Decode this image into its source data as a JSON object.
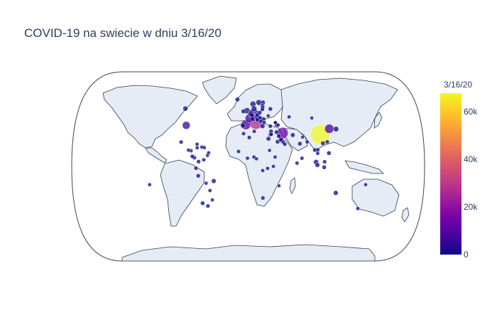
{
  "chart_data": {
    "type": "scatter",
    "subtype": "scatter-geo-bubble",
    "title": "COVID-19 na swiecie w dniu 3/16/20",
    "projection": "natural earth",
    "colorbar": {
      "title": "3/16/20",
      "range": [
        0,
        67800
      ],
      "ticks": [
        {
          "value": 0,
          "label": "0"
        },
        {
          "value": 20000,
          "label": "20k"
        },
        {
          "value": 40000,
          "label": "40k"
        },
        {
          "value": 60000,
          "label": "60k"
        }
      ],
      "colorscale": [
        "#0d0887",
        "#46039f",
        "#7201a8",
        "#9c179e",
        "#bd3786",
        "#d8576b",
        "#ed7953",
        "#fb9f3a",
        "#fdca26",
        "#f0f921"
      ]
    },
    "points": [
      {
        "lon": 112.3,
        "lat": 30.9,
        "value": 67800
      },
      {
        "lon": 12.5,
        "lat": 42.8,
        "value": 27980
      },
      {
        "lon": 53.7,
        "lat": 32.4,
        "value": 14991
      },
      {
        "lon": -3.7,
        "lat": 40.4,
        "value": 9942
      },
      {
        "lon": 127.8,
        "lat": 36.5,
        "value": 8236
      },
      {
        "lon": 10.4,
        "lat": 51.2,
        "value": 7272
      },
      {
        "lon": 2.2,
        "lat": 46.6,
        "value": 6650
      },
      {
        "lon": 8.2,
        "lat": 46.8,
        "value": 2200
      },
      {
        "lon": -98.5,
        "lat": 39.8,
        "value": 4632
      },
      {
        "lon": -2.0,
        "lat": 54.0,
        "value": 1543
      },
      {
        "lon": 5.3,
        "lat": 52.1,
        "value": 1414
      },
      {
        "lon": 8.5,
        "lat": 60.5,
        "value": 1256
      },
      {
        "lon": 14.6,
        "lat": 47.6,
        "value": 1018
      },
      {
        "lon": 4.5,
        "lat": 50.5,
        "value": 1058
      },
      {
        "lon": 18.6,
        "lat": 62.0,
        "value": 1040
      },
      {
        "lon": 10.0,
        "lat": 56.0,
        "value": 898
      },
      {
        "lon": 138.3,
        "lat": 36.2,
        "value": 825
      },
      {
        "lon": 103.8,
        "lat": 1.3,
        "value": 243
      },
      {
        "lon": 101.9,
        "lat": 4.2,
        "value": 553
      },
      {
        "lon": 50.6,
        "lat": 26.0,
        "value": 214
      },
      {
        "lon": 33.0,
        "lat": 49.0,
        "value": 7
      },
      {
        "lon": -106.3,
        "lat": 56.1,
        "value": 441
      },
      {
        "lon": 134.5,
        "lat": -25.7,
        "value": 377
      },
      {
        "lon": -51.9,
        "lat": -14.2,
        "value": 234
      },
      {
        "lon": 35.0,
        "lat": 31.0,
        "value": 298
      },
      {
        "lon": 22.9,
        "lat": 39.1,
        "value": 331
      },
      {
        "lon": 25.7,
        "lat": 61.9,
        "value": 272
      },
      {
        "lon": -8.2,
        "lat": 39.6,
        "value": 331
      },
      {
        "lon": 15.5,
        "lat": 49.8,
        "value": 298
      },
      {
        "lon": 19.1,
        "lat": 52.1,
        "value": 150
      },
      {
        "lon": 24.9,
        "lat": 45.9,
        "value": 158
      },
      {
        "lon": -8.0,
        "lat": 53.4,
        "value": 169
      },
      {
        "lon": 31.2,
        "lat": 26.8,
        "value": 166
      },
      {
        "lon": 45.1,
        "lat": 23.9,
        "value": 118
      },
      {
        "lon": 100.9,
        "lat": 15.9,
        "value": 147
      },
      {
        "lon": 113.9,
        "lat": -0.8,
        "value": 134
      },
      {
        "lon": 121.8,
        "lat": 12.9,
        "value": 142
      },
      {
        "lon": 78.9,
        "lat": 22.0,
        "value": 114
      },
      {
        "lon": 105.3,
        "lat": 16.0,
        "value": 61
      },
      {
        "lon": 69.3,
        "lat": 30.4,
        "value": 187
      },
      {
        "lon": 35.9,
        "lat": 33.9,
        "value": 99
      },
      {
        "lon": 47.5,
        "lat": 29.3,
        "value": 123
      },
      {
        "lon": 44.4,
        "lat": 33.2,
        "value": 124
      },
      {
        "lon": 51.2,
        "lat": 25.3,
        "value": 439
      },
      {
        "lon": 54.0,
        "lat": 23.4,
        "value": 98
      },
      {
        "lon": 37.6,
        "lat": 55.7,
        "value": 90
      },
      {
        "lon": 19.5,
        "lat": 47.2,
        "value": 39
      },
      {
        "lon": 14.9,
        "lat": 46.1,
        "value": 253
      },
      {
        "lon": 15.2,
        "lat": 45.1,
        "value": 56
      },
      {
        "lon": 20.5,
        "lat": 44.0,
        "value": 55
      },
      {
        "lon": 25.5,
        "lat": 42.7,
        "value": 51
      },
      {
        "lon": 24.6,
        "lat": 58.6,
        "value": 205
      },
      {
        "lon": 23.9,
        "lat": 55.2,
        "value": 14
      },
      {
        "lon": 24.6,
        "lat": 56.9,
        "value": 60
      },
      {
        "lon": -19.0,
        "lat": 64.9,
        "value": 180
      },
      {
        "lon": 6.1,
        "lat": 49.8,
        "value": 81
      },
      {
        "lon": 35.2,
        "lat": 39.0,
        "value": 47
      },
      {
        "lon": 43.4,
        "lat": 42.3,
        "value": 33
      },
      {
        "lon": 45.0,
        "lat": 40.1,
        "value": 52
      },
      {
        "lon": 47.6,
        "lat": 40.1,
        "value": 28
      },
      {
        "lon": 66.9,
        "lat": 48.0,
        "value": 10
      },
      {
        "lon": 35.9,
        "lat": 31.2,
        "value": 8
      },
      {
        "lon": 9.5,
        "lat": 34.0,
        "value": 20
      },
      {
        "lon": 1.7,
        "lat": 28.0,
        "value": 54
      },
      {
        "lon": -7.1,
        "lat": 31.8,
        "value": 28
      },
      {
        "lon": -14.5,
        "lat": 14.5,
        "value": 26
      },
      {
        "lon": -1.0,
        "lat": 7.9,
        "value": 6
      },
      {
        "lon": 8.7,
        "lat": 9.1,
        "value": 2
      },
      {
        "lon": 12.4,
        "lat": 7.4,
        "value": 4
      },
      {
        "lon": 21.8,
        "lat": -4.0,
        "value": 2
      },
      {
        "lon": 37.9,
        "lat": -0.02,
        "value": 3
      },
      {
        "lon": 40.5,
        "lat": 9.1,
        "value": 5
      },
      {
        "lon": 22.9,
        "lat": -30.6,
        "value": 62
      },
      {
        "lon": 29.2,
        "lat": -1.9,
        "value": 5
      },
      {
        "lon": 46.9,
        "lat": -18.8,
        "value": 1
      },
      {
        "lon": 32.3,
        "lat": 15.5,
        "value": 1
      },
      {
        "lon": -102.5,
        "lat": 23.6,
        "value": 53
      },
      {
        "lon": -78.2,
        "lat": -1.8,
        "value": 58
      },
      {
        "lon": -75.0,
        "lat": -9.2,
        "value": 86
      },
      {
        "lon": -71.5,
        "lat": -35.7,
        "value": 156
      },
      {
        "lon": -63.6,
        "lat": -38.4,
        "value": 56
      },
      {
        "lon": -74.3,
        "lat": 4.6,
        "value": 54
      },
      {
        "lon": -66.6,
        "lat": 6.4,
        "value": 17
      },
      {
        "lon": -80.8,
        "lat": 8.5,
        "value": 69
      },
      {
        "lon": -84.0,
        "lat": 9.7,
        "value": 41
      },
      {
        "lon": -77.8,
        "lat": 21.5,
        "value": 4
      },
      {
        "lon": -70.2,
        "lat": 18.7,
        "value": 21
      },
      {
        "lon": -77.3,
        "lat": 18.1,
        "value": 10
      },
      {
        "lon": -61.2,
        "lat": 10.7,
        "value": 5
      },
      {
        "lon": -90.2,
        "lat": 15.8,
        "value": 6
      },
      {
        "lon": -86.2,
        "lat": 15.2,
        "value": 8
      },
      {
        "lon": -63.6,
        "lat": -16.3,
        "value": 11
      },
      {
        "lon": -58.4,
        "lat": -23.4,
        "value": 8
      },
      {
        "lon": -55.8,
        "lat": -32.5,
        "value": 8
      },
      {
        "lon": -66.6,
        "lat": 18.2,
        "value": 5
      },
      {
        "lon": -59.5,
        "lat": 13.2,
        "value": 2
      },
      {
        "lon": 114.1,
        "lat": 22.4,
        "value": 157
      },
      {
        "lon": 121.0,
        "lat": 23.7,
        "value": 67
      },
      {
        "lon": 90.4,
        "lat": 23.7,
        "value": 8
      },
      {
        "lon": 84.1,
        "lat": 28.4,
        "value": 1
      },
      {
        "lon": 80.8,
        "lat": 7.9,
        "value": 28
      },
      {
        "lon": 73.2,
        "lat": 3.2,
        "value": 13
      },
      {
        "lon": 104.9,
        "lat": 12.6,
        "value": 7
      },
      {
        "lon": 114.7,
        "lat": 4.5,
        "value": 56
      },
      {
        "lon": 103.8,
        "lat": 46.9,
        "value": 1
      },
      {
        "lon": 174.9,
        "lat": -40.9,
        "value": 8
      },
      {
        "lon": 178.1,
        "lat": -17.7,
        "value": 1
      },
      {
        "lon": 55.9,
        "lat": 21.5,
        "value": 22
      },
      {
        "lon": 43.7,
        "lat": 42.5,
        "value": 0
      },
      {
        "lon": -149.4,
        "lat": -17.7,
        "value": 3
      }
    ]
  }
}
